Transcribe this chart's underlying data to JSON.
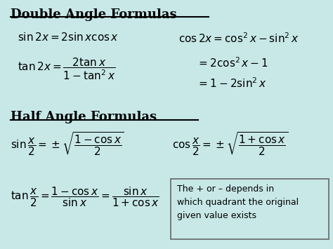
{
  "bg_color": "#c8e8e8",
  "text_color": "#000000",
  "title1": "Double Angle Formulas",
  "title2": "Half Angle Formulas",
  "note": "The + or – depends in\nwhich quadrant the original\ngiven value exists",
  "figsize": [
    4.74,
    3.55
  ],
  "dpi": 100
}
